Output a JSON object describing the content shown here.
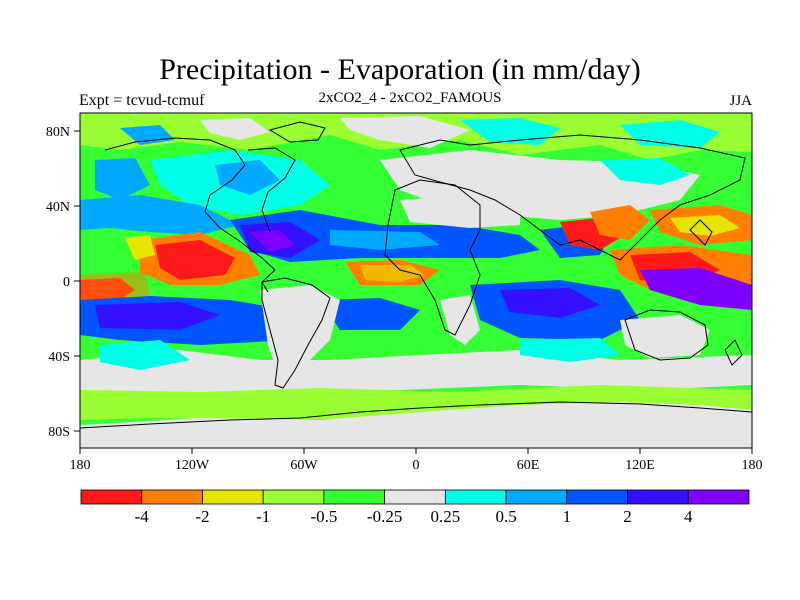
{
  "title": "Precipitation - Evaporation (in mm/day)",
  "experiment_label": "Expt = tcvud-tcmuf",
  "comparison_label": "2xCO2_4 - 2xCO2_FAMOUS",
  "season_label": "JJA",
  "map": {
    "lon_ticks": [
      "180",
      "120W",
      "60W",
      "0",
      "60E",
      "120E",
      "180"
    ],
    "lat_ticks": [
      "80N",
      "40N",
      "0",
      "40S",
      "80S"
    ]
  },
  "colorbar": {
    "colors": [
      "#ff1a1a",
      "#ff8000",
      "#e6e600",
      "#99ff33",
      "#33ff33",
      "#e6e6e6",
      "#00ffe6",
      "#00aaff",
      "#0055ff",
      "#3311ff",
      "#8000ff"
    ],
    "labels": [
      "-4",
      "-2",
      "-1",
      "-0.5",
      "-0.25",
      "0.25",
      "0.5",
      "1",
      "2",
      "4"
    ]
  },
  "palette": {
    "red": "#ff1a1a",
    "orange": "#ff8000",
    "yellow": "#e6e600",
    "lightgreen": "#99ff33",
    "green": "#33ff33",
    "grey": "#e6e6e6",
    "cyan": "#00ffe6",
    "lightblue": "#00aaff",
    "blue": "#0055ff",
    "indigo": "#3311ff",
    "violet": "#8000ff"
  }
}
